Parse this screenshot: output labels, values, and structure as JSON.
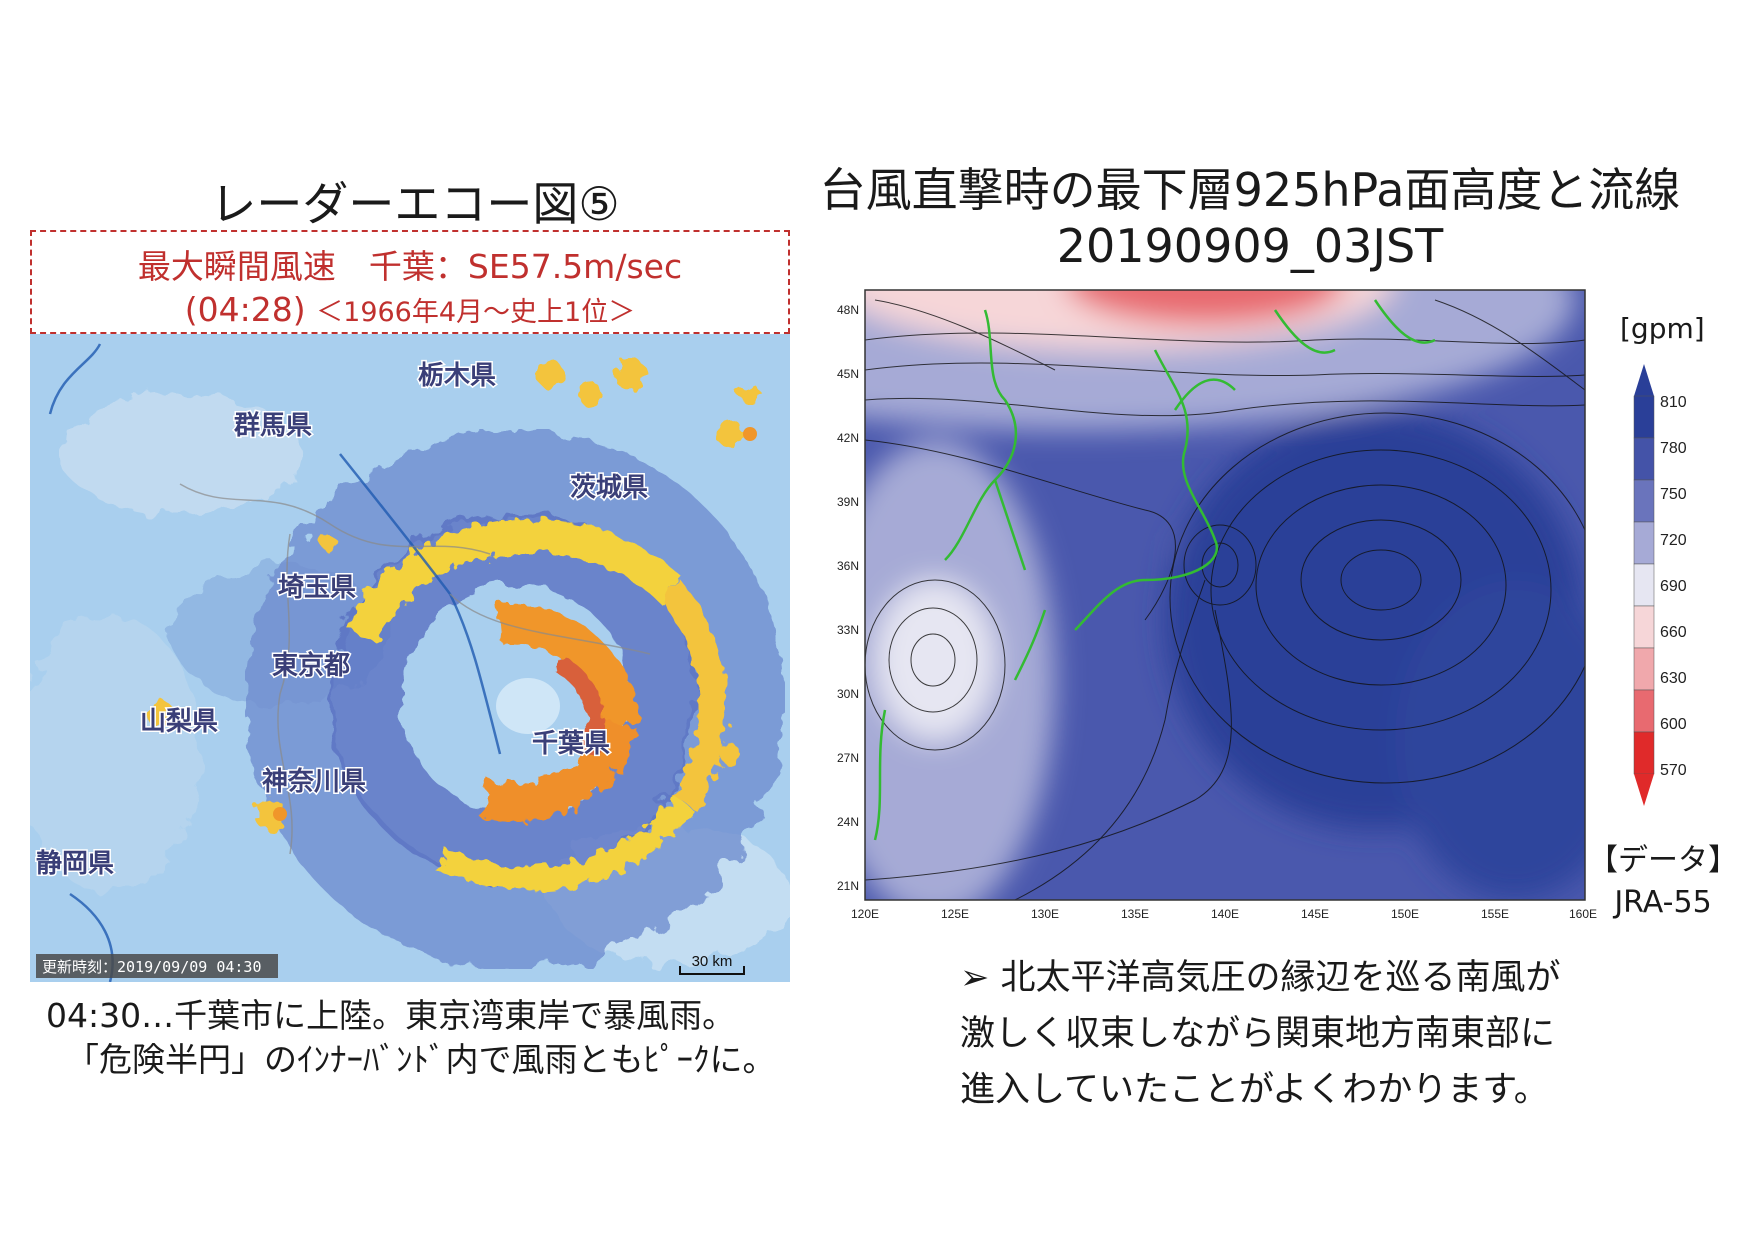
{
  "left_panel": {
    "title": "レーダーエコー図⑤",
    "wind_box": {
      "line1": "最大瞬間風速　千葉：SE57.5m/sec",
      "line2_time": "(04:28)",
      "line2_note": "＜1966年4月～史上1位＞"
    },
    "radar_image": {
      "timestamp": "更新時刻：2019/09/09 04:30",
      "scale_label": "30 km",
      "prefecture_labels": [
        "栃木県",
        "群馬県",
        "茨城県",
        "埼玉県",
        "東京都",
        "千葉県",
        "山梨県",
        "神奈川県",
        "静岡県"
      ],
      "echo_colors": {
        "light": "#9ec6ea",
        "moderate": "#5a78c8",
        "heavy": "#f5d840",
        "intense": "#f0962a",
        "extreme": "#d85a3a"
      }
    },
    "caption_line1": "04:30…千葉市に上陸。東京湾東岸で暴風雨。",
    "caption_line2": "「危険半円」のｲﾝﾅｰﾊﾞﾝﾄﾞ内で風雨ともﾋﾟｰｸに。"
  },
  "right_panel": {
    "title_line1": "台風直撃時の最下層925hPa面高度と流線",
    "title_line2": "20190909_03JST",
    "map": {
      "lat_ticks": [
        "48N",
        "45N",
        "42N",
        "39N",
        "36N",
        "33N",
        "30N",
        "27N",
        "24N",
        "21N"
      ],
      "lon_ticks": [
        "120E",
        "125E",
        "130E",
        "135E",
        "140E",
        "145E",
        "150E",
        "155E",
        "160E"
      ],
      "colorbar_unit": "[gpm]",
      "colorbar_levels": [
        "810",
        "780",
        "750",
        "720",
        "690",
        "660",
        "630",
        "600",
        "570"
      ],
      "colorbar_colors": [
        "#2a3f98",
        "#4453a8",
        "#6a74bc",
        "#a6aad6",
        "#e6e6f2",
        "#f6d6d8",
        "#f0a8ac",
        "#e86a70",
        "#e02a2a"
      ],
      "coast_color": "#33bb33"
    },
    "data_source_label": "【データ】",
    "data_source_name": "JRA-55",
    "bullet": "➢",
    "caption_lines": [
      "北太平洋高気圧の縁辺を巡る南風が",
      "激しく収束しながら関東地方南東部に",
      "進入していたことがよくわかります。"
    ]
  }
}
